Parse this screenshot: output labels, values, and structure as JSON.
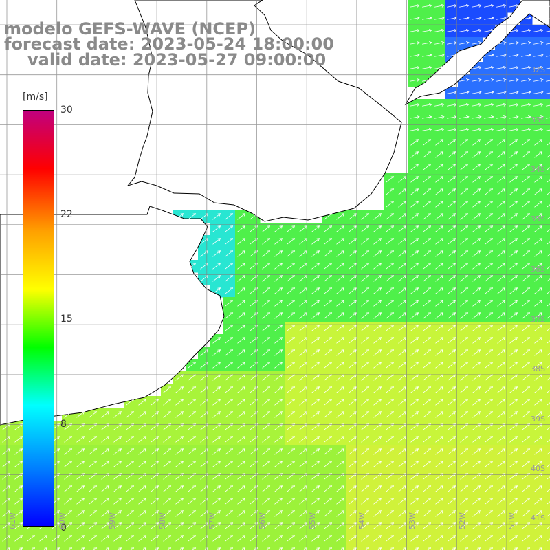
{
  "title": {
    "line1": "modelo GEFS-WAVE (NCEP)",
    "line2": "forecast date: 2023-05-24 18:00:00",
    "line3": "valid date: 2023-05-27 09:00:00"
  },
  "colorbar": {
    "unit": "[m/s]",
    "ticks": [
      "30",
      "22",
      "15",
      "8",
      "0"
    ],
    "colors": [
      "#c0007f",
      "#ff0000",
      "#ffa000",
      "#ffff00",
      "#00ff00",
      "#00ffff",
      "#0080ff",
      "#0000ff"
    ]
  },
  "axes": {
    "lat_labels": [
      "32S",
      "33S",
      "34S",
      "35S",
      "36S",
      "37S",
      "38S",
      "39S",
      "40S",
      "41S"
    ],
    "lon_labels": [
      "61W",
      "60W",
      "59W",
      "58W",
      "57W",
      "56W",
      "55W",
      "54W",
      "53W",
      "52W",
      "51W"
    ]
  },
  "colors": {
    "land": "#ffffff",
    "coast": "#000000",
    "grid": "#808080",
    "arrow": "#ffffff",
    "title": "#8a8a8a"
  }
}
